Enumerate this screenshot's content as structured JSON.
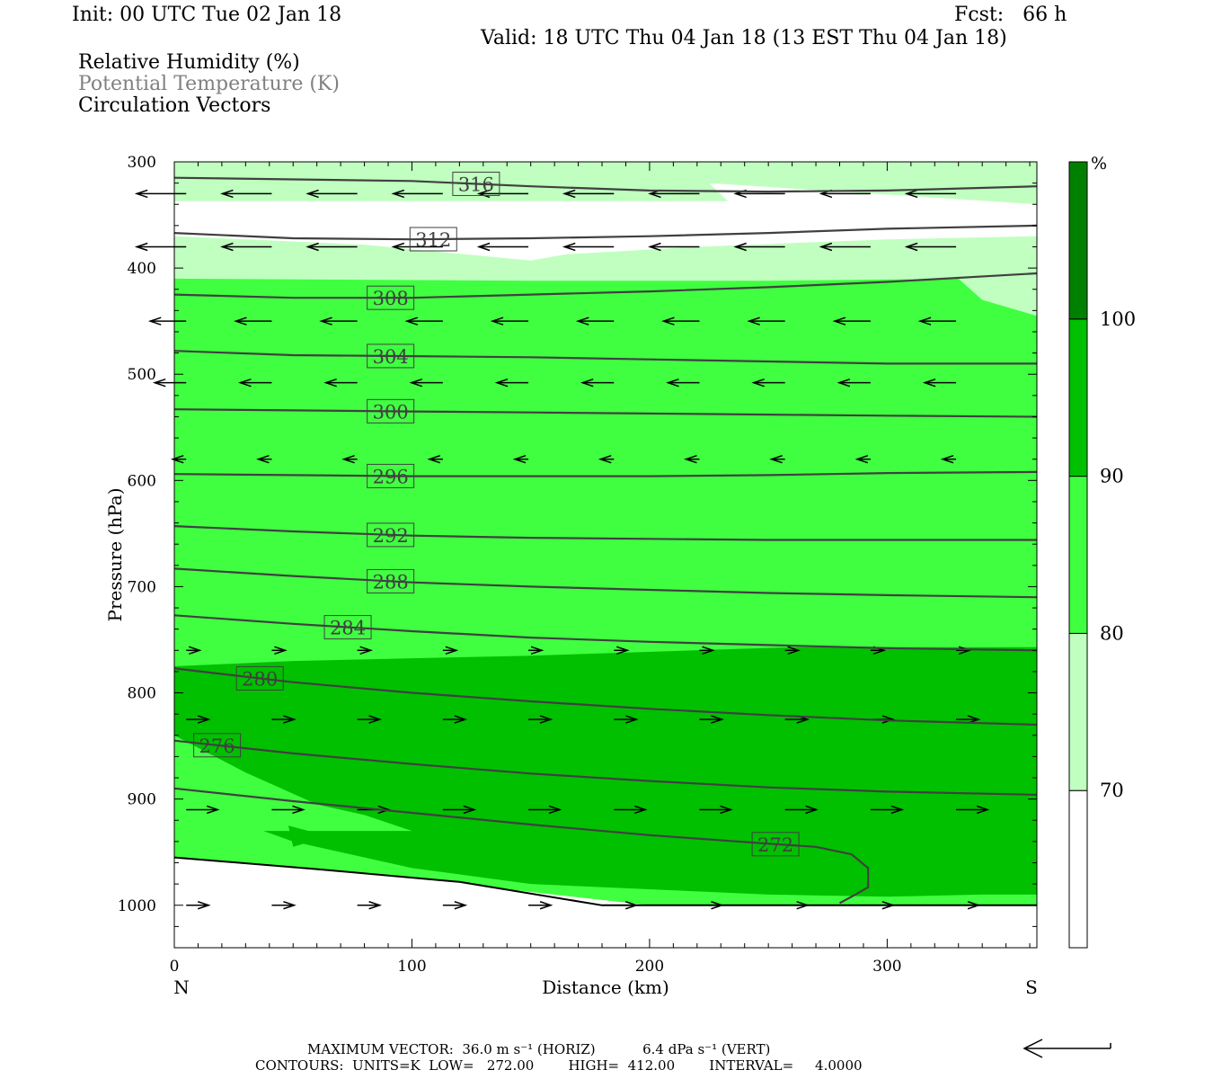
{
  "header": {
    "init": "Init: 00 UTC Tue 02 Jan 18",
    "fcst": "Fcst:   66 h",
    "valid": "Valid: 18 UTC Thu 04 Jan 18 (13 EST Thu 04 Jan 18)"
  },
  "fields": [
    {
      "label": "Relative Humidity (%)",
      "color": "#000000"
    },
    {
      "label": "Potential Temperature (K)",
      "color": "#808080"
    },
    {
      "label": "Circulation Vectors",
      "color": "#000000"
    }
  ],
  "footer": {
    "max_vector": "MAXIMUM VECTOR:  36.0 m s⁻¹ (HORIZ)           6.4 dPa s⁻¹ (VERT)",
    "contours": "CONTOURS:  UNITS=K  LOW=   272.00        HIGH=  412.00        INTERVAL=     4.0000"
  },
  "chart_data": {
    "type": "contour cross-section",
    "xlabel": "Distance (km)",
    "ylabel": "Pressure (hPa)",
    "xlim": [
      0,
      363
    ],
    "ylim": [
      300,
      1040
    ],
    "x_ticks": [
      0,
      100,
      200,
      300
    ],
    "y_ticks": [
      300,
      400,
      500,
      600,
      700,
      800,
      900,
      1000
    ],
    "x_end_labels": {
      "left": "N",
      "right": "S"
    },
    "colorbar": {
      "unit": "%",
      "levels": [
        "70",
        "80",
        "90",
        "100"
      ],
      "colors": [
        "#ffffff",
        "#c0ffc0",
        "#40ff40",
        "#00c000",
        "#008000"
      ]
    },
    "rh_fill": {
      "light_70_80": [
        {
          "x": [
            0,
            85,
            225,
            233,
            225,
            363,
            363,
            225,
            0
          ],
          "y": [
            300,
            300,
            300,
            320,
            355,
            355,
            300,
            300,
            300
          ]
        },
        {
          "x": [
            0,
            363,
            363,
            340,
            245,
            0
          ],
          "y": [
            320,
            320,
            305,
            305,
            337,
            337
          ]
        }
      ]
    },
    "rh_regions": [
      {
        "level": "70-80",
        "color": "#c0ffc0",
        "x": [
          0,
          100,
          200,
          220,
          230,
          245,
          363,
          363,
          0
        ],
        "y": [
          300,
          303,
          303,
          306,
          300,
          300,
          300,
          305,
          337
        ]
      },
      {
        "level": "70-80",
        "color": "#c0ffc0",
        "x": [
          0,
          80,
          160,
          220,
          300,
          363,
          363,
          340,
          330,
          0
        ],
        "y": [
          370,
          375,
          393,
          393,
          395,
          400,
          425,
          448,
          440,
          410
        ]
      }
    ],
    "theta_contours": [
      {
        "value": 316,
        "x": [
          0,
          100,
          150,
          200,
          250,
          300,
          363
        ],
        "y": [
          315,
          318,
          323,
          327,
          328,
          327,
          323
        ],
        "label_x": 127
      },
      {
        "value": 312,
        "x": [
          0,
          50,
          100,
          150,
          200,
          250,
          300,
          363
        ],
        "y": [
          367,
          372,
          373,
          372,
          370,
          367,
          363,
          360
        ],
        "label_x": 109
      },
      {
        "value": 308,
        "x": [
          0,
          50,
          100,
          150,
          200,
          250,
          300,
          363
        ],
        "y": [
          425,
          428,
          428,
          425,
          422,
          418,
          413,
          405
        ],
        "label_x": 91
      },
      {
        "value": 304,
        "x": [
          0,
          50,
          100,
          150,
          200,
          250,
          300,
          363
        ],
        "y": [
          478,
          482,
          483,
          484,
          486,
          488,
          490,
          490
        ],
        "label_x": 91
      },
      {
        "value": 300,
        "x": [
          0,
          50,
          100,
          150,
          200,
          250,
          300,
          363
        ],
        "y": [
          533,
          534,
          535,
          536,
          537,
          538,
          539,
          540
        ],
        "label_x": 91
      },
      {
        "value": 296,
        "x": [
          0,
          50,
          100,
          150,
          200,
          250,
          300,
          363
        ],
        "y": [
          594,
          595,
          596,
          596,
          596,
          595,
          593,
          592
        ],
        "label_x": 91
      },
      {
        "value": 292,
        "x": [
          0,
          50,
          100,
          150,
          200,
          250,
          300,
          363
        ],
        "y": [
          643,
          648,
          652,
          654,
          655,
          656,
          656,
          656
        ],
        "label_x": 91
      },
      {
        "value": 288,
        "x": [
          0,
          50,
          100,
          150,
          200,
          250,
          300,
          363
        ],
        "y": [
          683,
          690,
          696,
          700,
          703,
          706,
          708,
          710
        ],
        "label_x": 91
      },
      {
        "value": 284,
        "x": [
          0,
          50,
          100,
          150,
          200,
          250,
          300,
          363
        ],
        "y": [
          727,
          735,
          742,
          748,
          752,
          755,
          758,
          760
        ],
        "label_x": 73
      },
      {
        "value": 280,
        "x": [
          0,
          50,
          100,
          150,
          200,
          250,
          300,
          363
        ],
        "y": [
          777,
          790,
          800,
          808,
          815,
          821,
          826,
          830
        ],
        "label_x": 36
      },
      {
        "value": 276,
        "x": [
          0,
          50,
          100,
          150,
          200,
          250,
          300,
          363
        ],
        "y": [
          845,
          857,
          867,
          876,
          883,
          889,
          893,
          896
        ],
        "label_x": 18
      },
      {
        "value": 272,
        "x": [
          0,
          50,
          100,
          150,
          200,
          250,
          270,
          285,
          292,
          292,
          285,
          280
        ],
        "y": [
          890,
          902,
          913,
          924,
          934,
          942,
          945,
          952,
          965,
          983,
          992,
          998
        ],
        "label_x": 253
      }
    ],
    "terrain": {
      "x": [
        0,
        60,
        120,
        180,
        363
      ],
      "y": [
        955,
        966,
        978,
        1000,
        1000
      ]
    }
  }
}
